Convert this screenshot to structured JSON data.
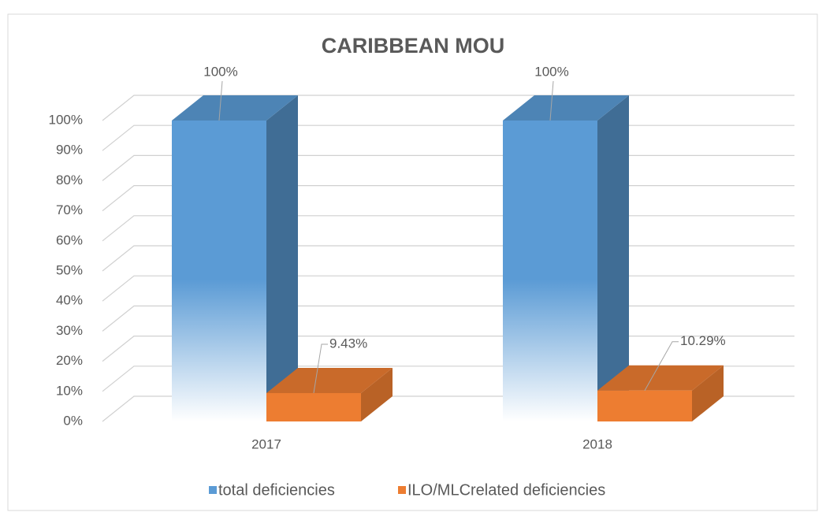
{
  "chart_data": {
    "type": "bar3d",
    "title": "CARIBBEAN MOU",
    "categories": [
      "2017",
      "2018"
    ],
    "series": [
      {
        "name": "total deficiencies",
        "color": "#5b9bd5",
        "values": [
          100,
          100
        ],
        "value_labels": [
          "100%",
          "100%"
        ]
      },
      {
        "name": "ILO/MLCrelated deficiencies",
        "color": "#ed7d31",
        "values": [
          9.43,
          10.29
        ],
        "value_labels": [
          "9.43%",
          "10.29%"
        ]
      }
    ],
    "ylim": [
      0,
      100
    ],
    "yticks": [
      {
        "value": 0,
        "label": "0%"
      },
      {
        "value": 10,
        "label": "10%"
      },
      {
        "value": 20,
        "label": "20%"
      },
      {
        "value": 30,
        "label": "30%"
      },
      {
        "value": 40,
        "label": "40%"
      },
      {
        "value": 50,
        "label": "50%"
      },
      {
        "value": 60,
        "label": "60%"
      },
      {
        "value": 70,
        "label": "70%"
      },
      {
        "value": 80,
        "label": "80%"
      },
      {
        "value": 90,
        "label": "90%"
      },
      {
        "value": 100,
        "label": "100%"
      }
    ],
    "grid": true,
    "legend": "bottom"
  }
}
